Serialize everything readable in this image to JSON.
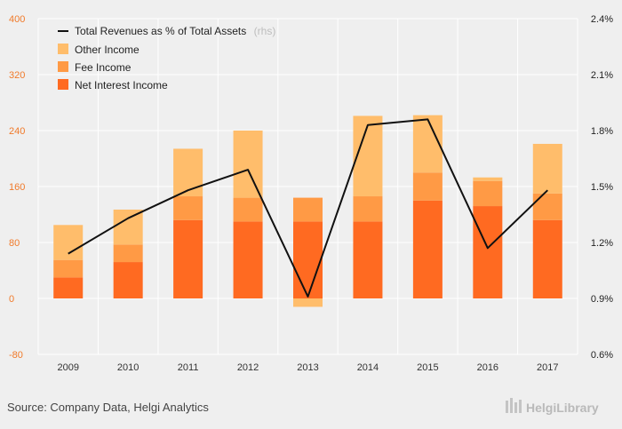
{
  "chart_data": {
    "type": "bar",
    "stacked": true,
    "categories": [
      "2009",
      "2010",
      "2011",
      "2012",
      "2013",
      "2014",
      "2015",
      "2016",
      "2017"
    ],
    "series": [
      {
        "name": "Net Interest Income",
        "axis": "left",
        "color": "#ff6a21",
        "values": [
          30,
          52,
          112,
          110,
          110,
          110,
          140,
          132,
          112
        ]
      },
      {
        "name": "Fee Income",
        "axis": "left",
        "color": "#ff9a45",
        "values": [
          25,
          25,
          34,
          34,
          34,
          36,
          40,
          36,
          38
        ]
      },
      {
        "name": "Other Income",
        "axis": "left",
        "color": "#ffbd6b",
        "values": [
          50,
          50,
          68,
          96,
          -12,
          115,
          82,
          5,
          71
        ]
      }
    ],
    "line": {
      "name": "Total Revenues as % of Total Assets",
      "axis_note": "(rhs)",
      "axis": "right",
      "color": "#111111",
      "values": [
        1.14,
        1.33,
        1.48,
        1.59,
        0.91,
        1.83,
        1.86,
        1.17,
        1.48
      ]
    },
    "y_left": {
      "min": -80,
      "max": 400,
      "ticks": [
        "-80",
        "0",
        "80",
        "160",
        "240",
        "320",
        "400"
      ],
      "tick_values": [
        -80,
        0,
        80,
        160,
        240,
        320,
        400
      ]
    },
    "y_right": {
      "min": 0.6,
      "max": 2.4,
      "ticks": [
        "0.6%",
        "0.9%",
        "1.2%",
        "1.5%",
        "1.8%",
        "2.1%",
        "2.4%"
      ],
      "tick_values": [
        0.6,
        0.9,
        1.2,
        1.5,
        1.8,
        2.1,
        2.4
      ]
    },
    "grid": true,
    "legend_position": "top-left",
    "legend_order": [
      "line",
      "Other Income",
      "Fee Income",
      "Net Interest Income"
    ]
  },
  "footer": {
    "source": "Source: Company Data, Helgi Analytics",
    "brand": "HelgiLibrary"
  },
  "colors": {
    "background": "#efefef",
    "grid": "#ffffff",
    "left_axis_text": "#f07a2a"
  }
}
